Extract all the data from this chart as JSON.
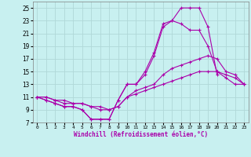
{
  "xlabel": "Windchill (Refroidissement éolien,°C)",
  "bg_color": "#c8f0f0",
  "grid_color": "#b0d8d8",
  "line_color": "#aa00aa",
  "xlim": [
    -0.5,
    23.5
  ],
  "ylim": [
    7,
    26
  ],
  "yticks": [
    7,
    9,
    11,
    13,
    15,
    17,
    19,
    21,
    23,
    25
  ],
  "xticks": [
    0,
    1,
    2,
    3,
    4,
    5,
    6,
    7,
    8,
    9,
    10,
    11,
    12,
    13,
    14,
    15,
    16,
    17,
    18,
    19,
    20,
    21,
    22,
    23
  ],
  "lines": [
    {
      "x": [
        0,
        1,
        2,
        3,
        4,
        5,
        6,
        7,
        8,
        9,
        10,
        11,
        12,
        13,
        14,
        15,
        16,
        17,
        18,
        19,
        20,
        21,
        22,
        23
      ],
      "y": [
        11,
        10.5,
        10,
        9.5,
        9.5,
        9.0,
        7.5,
        7.5,
        7.5,
        10.5,
        13,
        13,
        15,
        18,
        22.5,
        23,
        25,
        25,
        25,
        22,
        14.5,
        null,
        null,
        null
      ]
    },
    {
      "x": [
        0,
        1,
        2,
        3,
        4,
        5,
        6,
        7,
        8,
        9,
        10,
        11,
        12,
        13,
        14,
        15,
        16,
        17,
        18,
        19,
        20,
        21,
        22,
        23
      ],
      "y": [
        11,
        10.5,
        10,
        9.5,
        9.5,
        9.0,
        7.5,
        7.5,
        7.5,
        10.5,
        13,
        13,
        14.5,
        17.5,
        22,
        23,
        22.5,
        21.5,
        21.5,
        19,
        15,
        14.5,
        14,
        13
      ]
    },
    {
      "x": [
        0,
        1,
        2,
        3,
        4,
        5,
        6,
        7,
        8,
        9,
        10,
        11,
        12,
        13,
        14,
        15,
        16,
        17,
        18,
        19,
        20,
        21,
        22,
        23
      ],
      "y": [
        11,
        11,
        10.5,
        10,
        10,
        10,
        9.5,
        9,
        9,
        9.5,
        11,
        12,
        12.5,
        13,
        14.5,
        15.5,
        16,
        16.5,
        17,
        17.5,
        17,
        15,
        14.5,
        13
      ]
    },
    {
      "x": [
        0,
        1,
        2,
        3,
        4,
        5,
        6,
        7,
        8,
        9,
        10,
        11,
        12,
        13,
        14,
        15,
        16,
        17,
        18,
        19,
        20,
        21,
        22,
        23
      ],
      "y": [
        11,
        11,
        10.5,
        10.5,
        10,
        10,
        9.5,
        9.5,
        9.0,
        9.5,
        11,
        11.5,
        12,
        12.5,
        13,
        13.5,
        14,
        14.5,
        15,
        15,
        15,
        14,
        13,
        13
      ]
    }
  ]
}
